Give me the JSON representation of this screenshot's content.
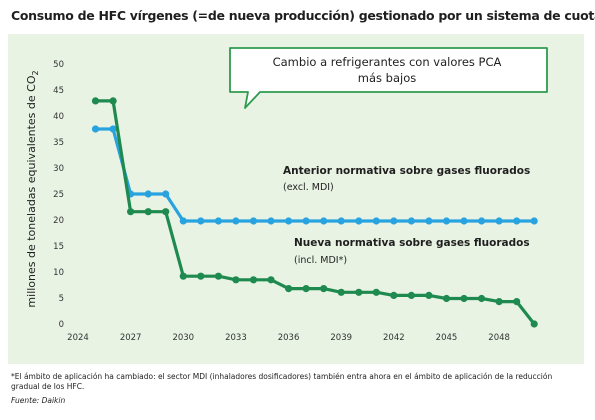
{
  "title": "Consumo de HFC vírgenes (=de nueva producción) gestionado por un sistema de cuotas",
  "callout": {
    "line1": "Cambio a refrigerantes con valores PCA",
    "line2": "más bajos"
  },
  "footnote": "*El ámbito de aplicación ha cambiado: el sector MDI (inhaladores dosificadores) también entra ahora en el ámbito de aplicación de la reducción gradual de los HFC.",
  "source": "Fuente: Daikin",
  "colors": {
    "background": "#e8f3e4",
    "old_series": "#29a3e0",
    "new_series": "#1f8a4f",
    "callout_border": "#2e9a4f"
  },
  "chart_data": {
    "type": "line",
    "ylabel": "millones de toneladas equivalentes de CO",
    "ylabel_subscript": "2",
    "xlabel": "",
    "ylim": [
      0,
      50
    ],
    "yticks": [
      0,
      5,
      10,
      15,
      20,
      25,
      30,
      35,
      40,
      45,
      50
    ],
    "xlim": [
      2024,
      2050.5
    ],
    "xticks": [
      2024,
      2027,
      2030,
      2033,
      2036,
      2039,
      2042,
      2045,
      2048
    ],
    "grid": false,
    "series": [
      {
        "name": "Anterior normativa sobre gases fluorados",
        "sub": "(excl. MDI)",
        "color": "#29a3e0",
        "x": [
          2025,
          2026,
          2027,
          2028,
          2029,
          2030,
          2031,
          2032,
          2033,
          2034,
          2035,
          2036,
          2037,
          2038,
          2039,
          2040,
          2041,
          2042,
          2043,
          2044,
          2045,
          2046,
          2047,
          2048,
          2049,
          2050
        ],
        "y": [
          37.5,
          37.5,
          25.0,
          25.0,
          25.0,
          19.8,
          19.8,
          19.8,
          19.8,
          19.8,
          19.8,
          19.8,
          19.8,
          19.8,
          19.8,
          19.8,
          19.8,
          19.8,
          19.8,
          19.8,
          19.8,
          19.8,
          19.8,
          19.8,
          19.8,
          19.8
        ]
      },
      {
        "name": "Nueva normativa sobre gases fluorados",
        "sub": "(incl. MDI*)",
        "color": "#1f8a4f",
        "x": [
          2025,
          2026,
          2027,
          2028,
          2029,
          2030,
          2031,
          2032,
          2033,
          2034,
          2035,
          2036,
          2037,
          2038,
          2039,
          2040,
          2041,
          2042,
          2043,
          2044,
          2045,
          2046,
          2047,
          2048,
          2049,
          2050
        ],
        "y": [
          42.9,
          42.9,
          21.6,
          21.6,
          21.6,
          9.2,
          9.2,
          9.2,
          8.5,
          8.5,
          8.5,
          6.8,
          6.8,
          6.8,
          6.1,
          6.1,
          6.1,
          5.5,
          5.5,
          5.5,
          4.9,
          4.9,
          4.9,
          4.3,
          4.3,
          0.0
        ]
      }
    ]
  }
}
